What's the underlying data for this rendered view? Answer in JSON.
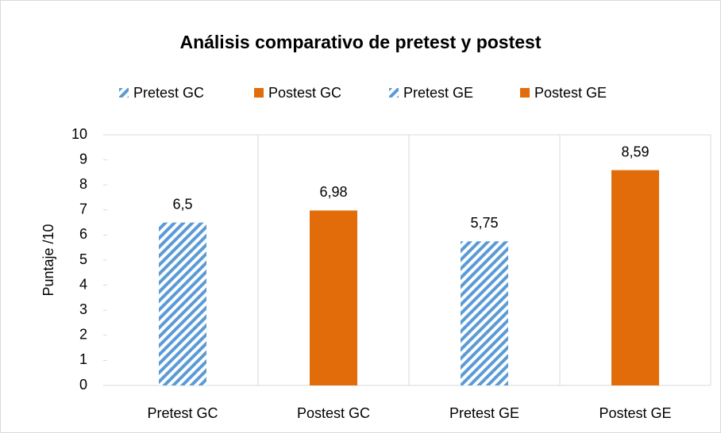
{
  "chart_data": {
    "type": "bar",
    "title": "Análisis comparativo de pretest y postest",
    "categories": [
      "Pretest GC",
      "Postest GC",
      "Pretest GE",
      "Postest GE"
    ],
    "series": [
      {
        "name": "Pretest GC",
        "color": "#5b9bd5",
        "pattern": "hatch",
        "values": [
          6.5,
          null,
          null,
          null
        ],
        "value_labels": [
          "6,5",
          null,
          null,
          null
        ]
      },
      {
        "name": "Postest GC",
        "color": "#e36c0a",
        "pattern": "solid",
        "values": [
          null,
          6.98,
          null,
          null
        ],
        "value_labels": [
          null,
          "6,98",
          null,
          null
        ]
      },
      {
        "name": "Pretest GE",
        "color": "#5b9bd5",
        "pattern": "hatch",
        "values": [
          null,
          null,
          5.75,
          null
        ],
        "value_labels": [
          null,
          null,
          "5,75",
          null
        ]
      },
      {
        "name": "Postest GE",
        "color": "#e36c0a",
        "pattern": "solid",
        "values": [
          null,
          null,
          null,
          8.59
        ],
        "value_labels": [
          null,
          null,
          null,
          "8,59"
        ]
      }
    ],
    "y_label": "Puntaje /10",
    "ylim": [
      0,
      10
    ],
    "yticks": [
      0,
      1,
      2,
      3,
      4,
      5,
      6,
      7,
      8,
      9,
      10
    ],
    "legend": "top"
  }
}
